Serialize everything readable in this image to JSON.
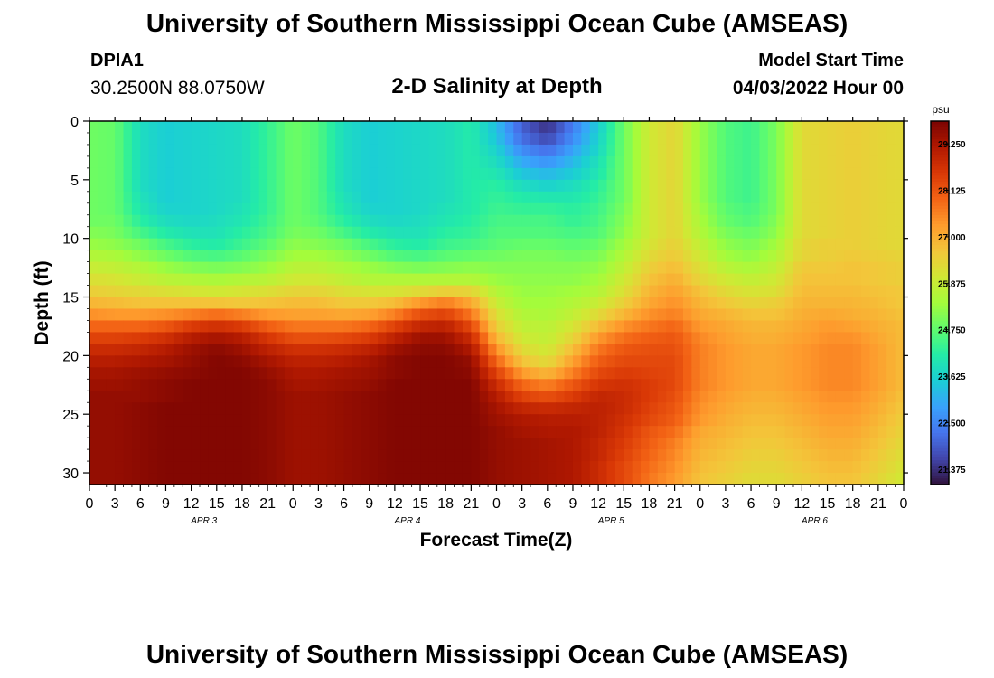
{
  "header": {
    "title": "University of Southern Mississippi Ocean Cube (AMSEAS)",
    "station_id": "DPIA1",
    "station_coords": "30.2500N  88.0750W",
    "chart_title": "2-D Salinity at Depth",
    "model_start_label": "Model Start Time",
    "model_start_value": "04/03/2022 Hour 00"
  },
  "footer": {
    "title": "University of Southern Mississippi Ocean Cube (AMSEAS)"
  },
  "chart_data": {
    "type": "heatmap",
    "title": "2-D Salinity at Depth",
    "xlabel": "Forecast Time(Z)",
    "ylabel": "Depth (ft)",
    "x_tick_labels": [
      "0",
      "3",
      "6",
      "9",
      "12",
      "15",
      "18",
      "21",
      "0",
      "3",
      "6",
      "9",
      "12",
      "15",
      "18",
      "21",
      "0",
      "3",
      "6",
      "9",
      "12",
      "15",
      "18",
      "21",
      "0",
      "3",
      "6",
      "9",
      "12",
      "15",
      "18",
      "21",
      "0"
    ],
    "date_labels": [
      "APR 3",
      "APR 4",
      "APR 5",
      "APR 6"
    ],
    "y_ticks": [
      0,
      5,
      10,
      15,
      20,
      25,
      30
    ],
    "xlim_hours": [
      0,
      96
    ],
    "ylim": [
      0,
      31
    ],
    "y_inverted": true,
    "colorbar": {
      "unit": "psu",
      "ticks": [
        "29.250",
        "28.125",
        "27.000",
        "25.875",
        "24.750",
        "23.625",
        "22.500",
        "21.375"
      ],
      "range": [
        21.0,
        29.8
      ],
      "colors": [
        "#30123b",
        "#4145ab",
        "#4675ed",
        "#39a2fc",
        "#1bcfd4",
        "#24eca6",
        "#61fc6c",
        "#a4fc3b",
        "#d1e834",
        "#f3c63a",
        "#fe9b2d",
        "#f36315",
        "#d93806",
        "#b11901",
        "#7a0402"
      ]
    },
    "depth_levels": [
      0,
      1,
      2,
      3,
      4,
      5,
      6,
      7,
      8,
      9,
      10,
      11,
      12,
      13,
      14,
      15,
      16,
      17,
      18,
      19,
      20,
      21,
      22,
      23,
      24,
      25,
      26,
      27,
      28,
      29,
      30
    ],
    "time_hours": [
      0,
      3,
      6,
      9,
      12,
      15,
      18,
      21,
      24,
      27,
      30,
      33,
      36,
      39,
      42,
      45,
      48,
      51,
      54,
      57,
      60,
      63,
      66,
      69,
      72,
      75,
      78,
      81,
      84,
      87,
      90,
      93,
      96
    ],
    "values": [
      [
        24.9,
        24.8,
        23.8,
        23.5,
        23.6,
        23.7,
        23.8,
        24.3,
        24.9,
        24.6,
        23.8,
        23.5,
        23.6,
        23.7,
        23.8,
        24.1,
        23.3,
        22.0,
        21.4,
        22.4,
        23.5,
        24.9,
        26.0,
        26.4,
        25.3,
        24.6,
        24.4,
        25.0,
        26.3,
        26.4,
        26.5,
        26.4,
        26.3
      ],
      [
        24.9,
        24.8,
        23.8,
        23.5,
        23.6,
        23.7,
        23.8,
        24.3,
        24.9,
        24.6,
        23.8,
        23.5,
        23.6,
        23.7,
        23.8,
        24.1,
        23.4,
        22.2,
        21.7,
        22.6,
        23.6,
        24.9,
        26.0,
        26.4,
        25.3,
        24.6,
        24.4,
        25.0,
        26.3,
        26.4,
        26.5,
        26.4,
        26.3
      ],
      [
        24.9,
        24.8,
        23.8,
        23.5,
        23.6,
        23.7,
        23.8,
        24.3,
        24.9,
        24.6,
        23.8,
        23.5,
        23.6,
        23.7,
        23.8,
        24.1,
        23.6,
        22.6,
        22.2,
        22.9,
        23.7,
        24.9,
        26.0,
        26.4,
        25.3,
        24.6,
        24.4,
        25.0,
        26.3,
        26.4,
        26.5,
        26.4,
        26.3
      ],
      [
        24.9,
        24.8,
        23.8,
        23.5,
        23.6,
        23.7,
        23.8,
        24.3,
        24.9,
        24.6,
        23.8,
        23.5,
        23.6,
        23.7,
        23.8,
        24.1,
        23.8,
        23.0,
        22.7,
        23.2,
        23.9,
        24.9,
        26.0,
        26.4,
        25.3,
        24.6,
        24.4,
        25.0,
        26.3,
        26.4,
        26.5,
        26.4,
        26.3
      ],
      [
        24.9,
        24.8,
        23.8,
        23.5,
        23.6,
        23.7,
        23.8,
        24.3,
        24.9,
        24.6,
        23.8,
        23.5,
        23.6,
        23.7,
        23.8,
        24.1,
        24.0,
        23.4,
        23.2,
        23.5,
        24.0,
        24.9,
        26.0,
        26.4,
        25.3,
        24.6,
        24.4,
        25.0,
        26.3,
        26.4,
        26.5,
        26.4,
        26.3
      ],
      [
        24.9,
        24.8,
        23.8,
        23.5,
        23.6,
        23.7,
        23.8,
        24.3,
        24.9,
        24.6,
        23.8,
        23.5,
        23.6,
        23.7,
        23.8,
        24.1,
        24.2,
        23.8,
        23.6,
        23.8,
        24.2,
        24.9,
        26.0,
        26.4,
        25.3,
        24.6,
        24.4,
        25.0,
        26.3,
        26.4,
        26.5,
        26.4,
        26.3
      ],
      [
        24.9,
        24.8,
        23.9,
        23.5,
        23.6,
        23.7,
        23.8,
        24.3,
        24.9,
        24.6,
        23.9,
        23.5,
        23.6,
        23.7,
        23.8,
        24.1,
        24.3,
        24.1,
        24.0,
        24.0,
        24.3,
        24.9,
        26.0,
        26.4,
        25.3,
        24.6,
        24.4,
        25.0,
        26.3,
        26.4,
        26.5,
        26.4,
        26.3
      ],
      [
        24.9,
        24.8,
        24.0,
        23.6,
        23.6,
        23.7,
        23.9,
        24.3,
        24.9,
        24.6,
        24.0,
        23.6,
        23.6,
        23.7,
        23.9,
        24.1,
        24.4,
        24.3,
        24.3,
        24.2,
        24.4,
        25.0,
        26.0,
        26.4,
        25.4,
        24.7,
        24.5,
        25.0,
        26.3,
        26.4,
        26.5,
        26.4,
        26.3
      ],
      [
        24.9,
        24.9,
        24.2,
        23.8,
        23.7,
        23.8,
        24.0,
        24.4,
        24.9,
        24.7,
        24.2,
        23.8,
        23.7,
        23.8,
        24.0,
        24.2,
        24.5,
        24.5,
        24.5,
        24.3,
        24.5,
        25.1,
        26.0,
        26.4,
        25.5,
        24.8,
        24.6,
        25.1,
        26.3,
        26.4,
        26.5,
        26.4,
        26.3
      ],
      [
        25.1,
        25.0,
        24.5,
        24.1,
        23.9,
        23.9,
        24.2,
        24.5,
        25.0,
        24.9,
        24.5,
        24.1,
        23.9,
        23.9,
        24.2,
        24.3,
        24.6,
        24.6,
        24.6,
        24.5,
        24.6,
        25.2,
        26.0,
        26.4,
        25.6,
        25.0,
        24.8,
        25.2,
        26.3,
        26.4,
        26.5,
        26.4,
        26.3
      ],
      [
        25.3,
        25.2,
        24.9,
        24.5,
        24.2,
        24.1,
        24.4,
        24.7,
        25.2,
        25.1,
        24.9,
        24.5,
        24.2,
        24.1,
        24.4,
        24.5,
        24.7,
        24.8,
        24.8,
        24.7,
        24.8,
        25.4,
        26.1,
        26.5,
        25.8,
        25.2,
        25.0,
        25.4,
        26.4,
        26.5,
        26.5,
        26.4,
        26.3
      ],
      [
        25.6,
        25.5,
        25.2,
        24.9,
        24.6,
        24.5,
        24.7,
        25.0,
        25.4,
        25.4,
        25.2,
        24.9,
        24.6,
        24.5,
        24.7,
        24.8,
        24.9,
        25.0,
        25.0,
        24.9,
        25.0,
        25.6,
        26.3,
        26.6,
        26.0,
        25.4,
        25.2,
        25.6,
        26.4,
        26.5,
        26.6,
        26.5,
        26.4
      ],
      [
        25.9,
        25.8,
        25.6,
        25.3,
        25.1,
        25.0,
        25.1,
        25.3,
        25.7,
        25.7,
        25.5,
        25.3,
        25.1,
        25.0,
        25.1,
        25.2,
        25.1,
        25.1,
        25.1,
        25.1,
        25.2,
        25.8,
        26.5,
        26.8,
        26.2,
        25.7,
        25.5,
        25.8,
        26.6,
        26.6,
        26.7,
        26.6,
        26.5
      ],
      [
        26.2,
        26.1,
        25.9,
        25.7,
        25.6,
        25.5,
        25.6,
        25.7,
        26.0,
        26.0,
        25.8,
        25.6,
        25.6,
        25.6,
        25.6,
        25.6,
        25.3,
        25.2,
        25.2,
        25.2,
        25.4,
        26.0,
        26.7,
        27.0,
        26.4,
        26.0,
        25.8,
        26.0,
        26.7,
        26.7,
        26.7,
        26.6,
        26.5
      ],
      [
        26.5,
        26.4,
        26.3,
        26.2,
        26.1,
        26.0,
        26.1,
        26.2,
        26.4,
        26.4,
        26.2,
        26.1,
        26.1,
        26.3,
        26.5,
        26.4,
        25.6,
        25.3,
        25.3,
        25.4,
        25.6,
        26.2,
        26.9,
        27.2,
        26.7,
        26.3,
        26.1,
        26.2,
        26.8,
        26.8,
        26.8,
        26.7,
        26.6
      ],
      [
        26.9,
        26.8,
        26.7,
        26.7,
        26.7,
        26.7,
        26.6,
        26.7,
        26.8,
        26.8,
        26.6,
        26.6,
        26.8,
        27.3,
        27.6,
        27.1,
        25.9,
        25.4,
        25.4,
        25.6,
        25.9,
        26.5,
        27.1,
        27.4,
        26.9,
        26.6,
        26.4,
        26.5,
        26.9,
        26.9,
        26.9,
        26.8,
        26.6
      ],
      [
        27.4,
        27.3,
        27.3,
        27.4,
        27.6,
        27.8,
        27.6,
        27.3,
        27.2,
        27.2,
        27.1,
        27.2,
        27.6,
        28.2,
        28.4,
        27.7,
        26.2,
        25.6,
        25.5,
        25.8,
        26.3,
        26.9,
        27.4,
        27.6,
        27.1,
        26.9,
        26.7,
        26.7,
        27.0,
        27.1,
        27.0,
        26.9,
        26.7
      ],
      [
        27.9,
        27.9,
        27.9,
        28.1,
        28.5,
        28.7,
        28.5,
        28.0,
        27.7,
        27.7,
        27.7,
        27.9,
        28.4,
        28.9,
        29.0,
        28.3,
        26.5,
        25.8,
        25.7,
        26.1,
        26.8,
        27.4,
        27.7,
        27.9,
        27.3,
        27.1,
        26.9,
        26.9,
        27.1,
        27.3,
        27.2,
        27.0,
        26.8
      ],
      [
        28.4,
        28.4,
        28.5,
        28.7,
        29.1,
        29.3,
        29.1,
        28.6,
        28.2,
        28.2,
        28.3,
        28.5,
        29.0,
        29.4,
        29.4,
        28.8,
        26.9,
        26.0,
        25.8,
        26.4,
        27.3,
        27.8,
        28.0,
        28.1,
        27.5,
        27.2,
        27.0,
        27.0,
        27.2,
        27.4,
        27.4,
        27.1,
        26.8
      ],
      [
        28.8,
        28.8,
        28.9,
        29.1,
        29.4,
        29.6,
        29.4,
        29.0,
        28.7,
        28.7,
        28.8,
        29.0,
        29.4,
        29.6,
        29.6,
        29.2,
        27.4,
        26.3,
        26.0,
        26.8,
        27.7,
        28.1,
        28.2,
        28.2,
        27.6,
        27.3,
        27.1,
        27.1,
        27.3,
        27.5,
        27.5,
        27.2,
        26.8
      ],
      [
        29.1,
        29.1,
        29.2,
        29.3,
        29.5,
        29.7,
        29.6,
        29.3,
        29.0,
        29.0,
        29.1,
        29.3,
        29.6,
        29.7,
        29.7,
        29.5,
        27.9,
        26.7,
        26.3,
        27.2,
        28.0,
        28.3,
        28.3,
        28.3,
        27.6,
        27.3,
        27.1,
        27.1,
        27.3,
        27.5,
        27.5,
        27.2,
        26.8
      ],
      [
        29.3,
        29.3,
        29.4,
        29.5,
        29.6,
        29.7,
        29.7,
        29.5,
        29.2,
        29.2,
        29.3,
        29.4,
        29.6,
        29.7,
        29.7,
        29.6,
        28.4,
        27.3,
        26.9,
        27.6,
        28.3,
        28.5,
        28.4,
        28.3,
        27.6,
        27.3,
        27.1,
        27.1,
        27.3,
        27.5,
        27.5,
        27.2,
        26.8
      ],
      [
        29.4,
        29.4,
        29.5,
        29.6,
        29.7,
        29.7,
        29.7,
        29.6,
        29.3,
        29.3,
        29.4,
        29.5,
        29.7,
        29.7,
        29.7,
        29.7,
        28.8,
        27.9,
        27.6,
        28.1,
        28.6,
        28.7,
        28.5,
        28.3,
        27.6,
        27.3,
        27.1,
        27.1,
        27.3,
        27.5,
        27.5,
        27.2,
        26.8
      ],
      [
        29.5,
        29.5,
        29.5,
        29.6,
        29.7,
        29.7,
        29.7,
        29.6,
        29.4,
        29.4,
        29.5,
        29.6,
        29.7,
        29.7,
        29.7,
        29.7,
        29.1,
        28.4,
        28.2,
        28.5,
        28.9,
        28.8,
        28.5,
        28.2,
        27.5,
        27.2,
        27.0,
        27.0,
        27.2,
        27.4,
        27.4,
        27.1,
        26.7
      ],
      [
        29.5,
        29.5,
        29.6,
        29.7,
        29.7,
        29.7,
        29.7,
        29.6,
        29.4,
        29.4,
        29.5,
        29.6,
        29.7,
        29.7,
        29.7,
        29.7,
        29.3,
        28.9,
        28.8,
        28.9,
        29.0,
        28.8,
        28.4,
        28.1,
        27.4,
        27.1,
        26.9,
        26.9,
        27.1,
        27.3,
        27.3,
        27.0,
        26.6
      ],
      [
        29.5,
        29.5,
        29.6,
        29.7,
        29.7,
        29.7,
        29.7,
        29.6,
        29.4,
        29.4,
        29.5,
        29.6,
        29.7,
        29.7,
        29.7,
        29.7,
        29.4,
        29.2,
        29.1,
        29.1,
        29.0,
        28.7,
        28.3,
        28.0,
        27.3,
        27.0,
        26.8,
        26.8,
        27.0,
        27.2,
        27.2,
        26.9,
        26.5
      ],
      [
        29.5,
        29.5,
        29.6,
        29.7,
        29.7,
        29.7,
        29.7,
        29.6,
        29.4,
        29.4,
        29.5,
        29.6,
        29.7,
        29.7,
        29.7,
        29.7,
        29.5,
        29.3,
        29.2,
        29.2,
        29.0,
        28.6,
        28.1,
        27.8,
        27.1,
        26.9,
        26.7,
        26.7,
        26.9,
        27.1,
        27.1,
        26.8,
        26.4
      ],
      [
        29.5,
        29.5,
        29.6,
        29.7,
        29.7,
        29.7,
        29.7,
        29.6,
        29.4,
        29.4,
        29.5,
        29.6,
        29.7,
        29.7,
        29.7,
        29.7,
        29.5,
        29.4,
        29.3,
        29.2,
        28.9,
        28.5,
        28.0,
        27.6,
        27.0,
        26.8,
        26.6,
        26.6,
        26.8,
        27.0,
        27.0,
        26.7,
        26.3
      ],
      [
        29.5,
        29.5,
        29.6,
        29.7,
        29.7,
        29.7,
        29.7,
        29.6,
        29.4,
        29.4,
        29.5,
        29.6,
        29.7,
        29.7,
        29.7,
        29.7,
        29.5,
        29.4,
        29.3,
        29.2,
        28.9,
        28.4,
        27.9,
        27.5,
        26.9,
        26.7,
        26.5,
        26.5,
        26.7,
        26.9,
        26.9,
        26.6,
        26.2
      ],
      [
        29.5,
        29.5,
        29.6,
        29.7,
        29.7,
        29.7,
        29.7,
        29.6,
        29.4,
        29.4,
        29.5,
        29.6,
        29.7,
        29.7,
        29.7,
        29.7,
        29.5,
        29.4,
        29.3,
        29.2,
        28.8,
        28.3,
        27.8,
        27.4,
        26.8,
        26.6,
        26.4,
        26.4,
        26.6,
        26.8,
        26.8,
        26.5,
        26.1
      ],
      [
        29.5,
        29.5,
        29.6,
        29.7,
        29.7,
        29.7,
        29.7,
        29.6,
        29.4,
        29.4,
        29.5,
        29.6,
        29.7,
        29.7,
        29.7,
        29.7,
        29.5,
        29.4,
        29.3,
        29.2,
        28.8,
        28.3,
        27.7,
        27.3,
        26.7,
        26.5,
        26.3,
        26.3,
        26.5,
        26.7,
        26.7,
        26.4,
        26.0
      ]
    ]
  }
}
